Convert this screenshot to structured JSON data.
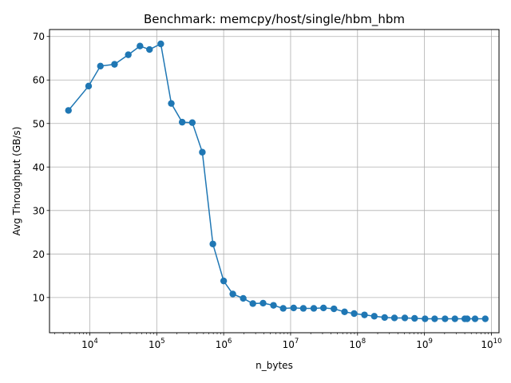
{
  "chart_data": {
    "type": "line",
    "title": "Benchmark: memcpy/host/single/hbm_hbm",
    "xlabel": "n_bytes",
    "ylabel": "Avg Throughput (GB/s)",
    "xscale": "log",
    "xlim": [
      2500,
      13000000000
    ],
    "ylim": [
      1.9,
      71.6
    ],
    "grid": true,
    "color": "#1f77b4",
    "xticks": [
      {
        "base": "10",
        "exp": "4",
        "value": 10000
      },
      {
        "base": "10",
        "exp": "5",
        "value": 100000
      },
      {
        "base": "10",
        "exp": "6",
        "value": 1000000
      },
      {
        "base": "10",
        "exp": "7",
        "value": 10000000
      },
      {
        "base": "10",
        "exp": "8",
        "value": 100000000
      },
      {
        "base": "10",
        "exp": "9",
        "value": 1000000000
      },
      {
        "base": "10",
        "exp": "10",
        "value": 10000000000
      }
    ],
    "yticks": [
      10,
      20,
      30,
      40,
      50,
      60,
      70
    ],
    "series": [
      {
        "x": [
          4800,
          9600,
          14400,
          23400,
          37600,
          56200,
          78000,
          115000,
          165000,
          240000,
          340000,
          480000,
          690000,
          1000000,
          1370000,
          1960000,
          2730000,
          3880000,
          5550000,
          7750000,
          11100000,
          15500000,
          22200000,
          31000000,
          44400000,
          64000000,
          89000000,
          127000000,
          178000000,
          254000000,
          356000000,
          509000000,
          712000000,
          1020000000,
          1420000000,
          2030000000,
          2850000000,
          4000000000,
          4350000000,
          5700000000,
          8100000000
        ],
        "y": [
          53.0,
          58.6,
          63.2,
          63.6,
          65.8,
          67.8,
          67.0,
          68.3,
          54.6,
          50.3,
          50.2,
          43.4,
          22.3,
          13.8,
          10.8,
          9.8,
          8.6,
          8.7,
          8.2,
          7.5,
          7.6,
          7.5,
          7.5,
          7.6,
          7.4,
          6.7,
          6.3,
          6.0,
          5.7,
          5.4,
          5.3,
          5.3,
          5.2,
          5.1,
          5.1,
          5.1,
          5.1,
          5.1,
          5.1,
          5.1,
          5.1
        ]
      }
    ]
  }
}
